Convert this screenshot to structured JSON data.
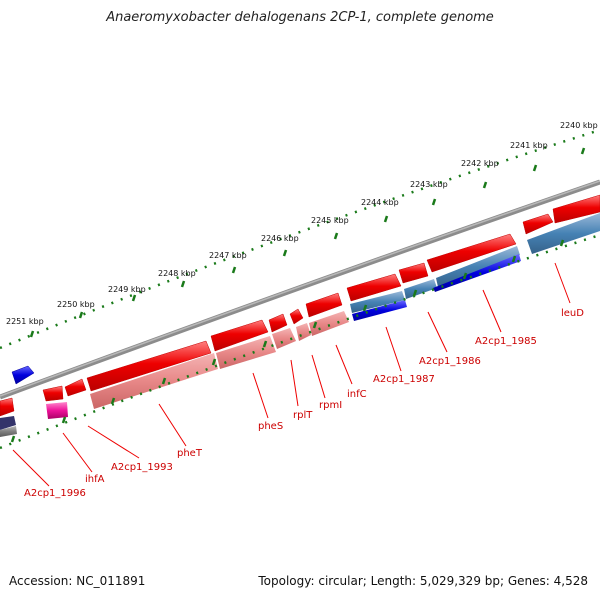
{
  "header": {
    "title": "Anaeromyxobacter dehalogenans 2CP-1, complete genome"
  },
  "footer": {
    "accession": "Accession: NC_011891",
    "summary": "Topology: circular; Length: 5,029,329 bp; Genes: 4,528"
  },
  "ruler": {
    "ticks": [
      "2240 kbp",
      "2241 kbp",
      "2242 kbp",
      "2243 kbp",
      "2244 kbp",
      "2245 kbp",
      "2246 kbp",
      "2247 kbp",
      "2248 kbp",
      "2249 kbp",
      "2250 kbp",
      "2251 kbp"
    ]
  },
  "genes": [
    "leuD",
    "A2cp1_1985",
    "A2cp1_1986",
    "A2cp1_1987",
    "infC",
    "rpmI",
    "rplT",
    "pheS",
    "pheT",
    "A2cp1_1993",
    "ihfA",
    "A2cp1_1996"
  ],
  "colors": {
    "cds": "#ee0000",
    "rna_light": "#ee8888",
    "steelblue": "#4682b4",
    "blue": "#0000dd",
    "magenta": "#ee1199",
    "backbone": "#808080",
    "ruler_dots": "#1a7a1a",
    "label": "#cc0000"
  }
}
